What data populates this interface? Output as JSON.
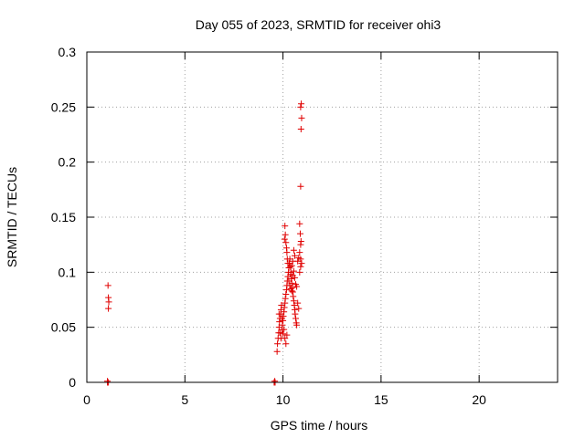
{
  "chart_data": {
    "type": "scatter",
    "title": "Day 055 of 2023, SRMTID for receiver ohi3",
    "xlabel": "GPS time / hours",
    "ylabel": "SRMTID / TECUs",
    "xlim": [
      0,
      24
    ],
    "ylim": [
      0,
      0.3
    ],
    "xticks": [
      0,
      5,
      10,
      15,
      20
    ],
    "yticks": [
      0,
      0.05,
      0.1,
      0.15,
      0.2,
      0.25,
      0.3
    ],
    "ytick_labels": [
      "0",
      "0.05",
      "0.1",
      "0.15",
      "0.2",
      "0.25",
      "0.3"
    ],
    "grid": true,
    "marker": "+",
    "color": "#e00000",
    "series": [
      {
        "name": "SRMTID",
        "points": [
          [
            1.05,
            0.0
          ],
          [
            1.1,
            0.0
          ],
          [
            1.05,
            0.001
          ],
          [
            1.08,
            0.088
          ],
          [
            1.1,
            0.077
          ],
          [
            1.12,
            0.073
          ],
          [
            1.1,
            0.067
          ],
          [
            9.55,
            0.0
          ],
          [
            9.6,
            0.0
          ],
          [
            9.58,
            0.001
          ],
          [
            9.7,
            0.028
          ],
          [
            9.72,
            0.035
          ],
          [
            9.75,
            0.04
          ],
          [
            9.78,
            0.045
          ],
          [
            9.8,
            0.05
          ],
          [
            9.82,
            0.055
          ],
          [
            9.85,
            0.058
          ],
          [
            9.88,
            0.062
          ],
          [
            9.9,
            0.066
          ],
          [
            9.92,
            0.07
          ],
          [
            9.95,
            0.048
          ],
          [
            9.97,
            0.052
          ],
          [
            10.0,
            0.056
          ],
          [
            10.02,
            0.06
          ],
          [
            10.05,
            0.064
          ],
          [
            10.07,
            0.068
          ],
          [
            10.1,
            0.072
          ],
          [
            10.12,
            0.076
          ],
          [
            10.15,
            0.08
          ],
          [
            10.18,
            0.084
          ],
          [
            10.2,
            0.088
          ],
          [
            10.22,
            0.092
          ],
          [
            10.25,
            0.096
          ],
          [
            10.28,
            0.1
          ],
          [
            10.3,
            0.104
          ],
          [
            10.32,
            0.108
          ],
          [
            10.35,
            0.112
          ],
          [
            10.38,
            0.105
          ],
          [
            10.4,
            0.098
          ],
          [
            10.42,
            0.094
          ],
          [
            10.45,
            0.09
          ],
          [
            10.48,
            0.086
          ],
          [
            10.5,
            0.082
          ],
          [
            10.52,
            0.078
          ],
          [
            10.55,
            0.074
          ],
          [
            10.58,
            0.07
          ],
          [
            10.6,
            0.066
          ],
          [
            10.62,
            0.062
          ],
          [
            10.65,
            0.058
          ],
          [
            10.68,
            0.054
          ],
          [
            10.7,
            0.052
          ],
          [
            9.8,
            0.062
          ],
          [
            9.85,
            0.045
          ],
          [
            9.9,
            0.04
          ],
          [
            9.95,
            0.058
          ],
          [
            10.0,
            0.044
          ],
          [
            10.05,
            0.048
          ],
          [
            10.1,
            0.04
          ],
          [
            10.15,
            0.035
          ],
          [
            10.2,
            0.043
          ],
          [
            10.08,
            0.13
          ],
          [
            10.1,
            0.142
          ],
          [
            10.12,
            0.134
          ],
          [
            10.15,
            0.127
          ],
          [
            10.18,
            0.122
          ],
          [
            10.2,
            0.118
          ],
          [
            10.22,
            0.112
          ],
          [
            10.25,
            0.108
          ],
          [
            10.3,
            0.092
          ],
          [
            10.35,
            0.088
          ],
          [
            10.4,
            0.085
          ],
          [
            10.45,
            0.083
          ],
          [
            10.5,
            0.097
          ],
          [
            10.55,
            0.101
          ],
          [
            10.6,
            0.095
          ],
          [
            10.65,
            0.089
          ],
          [
            10.7,
            0.087
          ],
          [
            10.75,
            0.11
          ],
          [
            10.8,
            0.113
          ],
          [
            10.85,
            0.118
          ],
          [
            10.9,
            0.125
          ],
          [
            10.92,
            0.128
          ],
          [
            10.88,
            0.135
          ],
          [
            10.85,
            0.144
          ],
          [
            10.9,
            0.112
          ],
          [
            10.75,
            0.072
          ],
          [
            10.8,
            0.067
          ],
          [
            10.85,
            0.1
          ],
          [
            10.9,
            0.105
          ],
          [
            10.95,
            0.108
          ],
          [
            10.6,
            0.115
          ],
          [
            10.55,
            0.12
          ],
          [
            10.5,
            0.11
          ],
          [
            10.45,
            0.106
          ],
          [
            10.4,
            0.1
          ],
          [
            10.9,
            0.178
          ],
          [
            10.92,
            0.23
          ],
          [
            10.95,
            0.24
          ],
          [
            10.9,
            0.25
          ],
          [
            10.93,
            0.253
          ]
        ]
      }
    ]
  }
}
